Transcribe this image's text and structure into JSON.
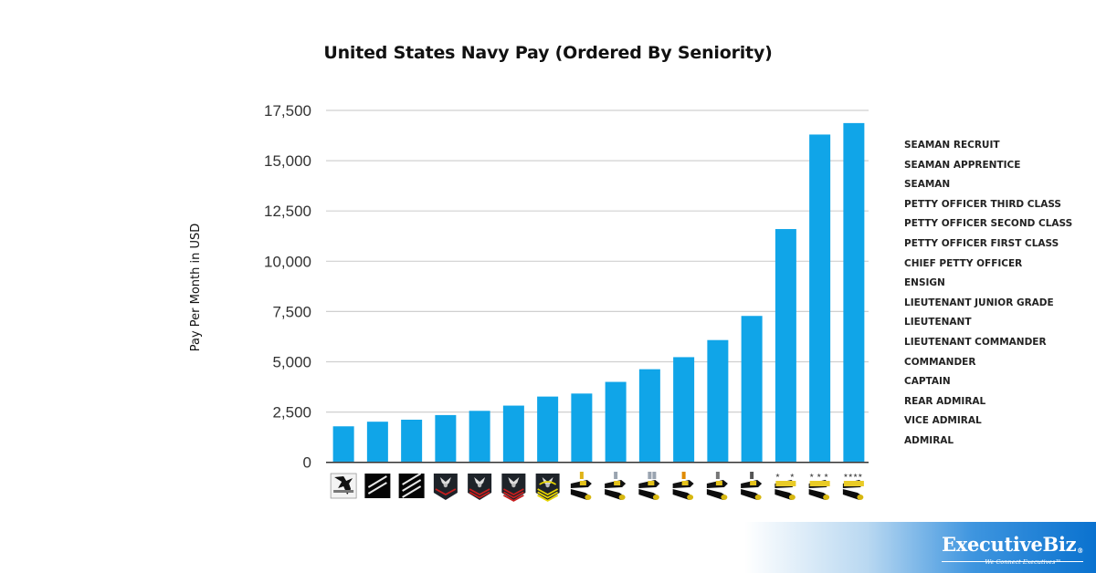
{
  "chart_data": {
    "type": "bar",
    "title": "United States Navy Pay (Ordered By Seniority)",
    "xlabel": "",
    "ylabel": "Pay Per Month in USD",
    "ylim": [
      0,
      17500
    ],
    "yticks": [
      0,
      2500,
      5000,
      7500,
      10000,
      12500,
      15000,
      17500
    ],
    "ytick_labels": [
      "0",
      "2,500",
      "5,000",
      "7,500",
      "10,000",
      "12,500",
      "15,000",
      "17,500"
    ],
    "grid": true,
    "bar_color": "#10A5E8",
    "categories": [
      "SEAMAN RECRUIT",
      "SEAMAN APPRENTICE",
      "SEAMAN",
      "PETTY OFFICER THIRD CLASS",
      "PETTY OFFICER SECOND CLASS",
      "PETTY OFFICER FIRST CLASS",
      "CHIEF PETTY OFFICER",
      "ENSIGN",
      "LIEUTENANT JUNIOR GRADE",
      "LIEUTENANT",
      "LIEUTENANT COMMANDER",
      "COMMANDER",
      "CAPTAIN",
      "REAR ADMIRAL",
      "VICE ADMIRAL",
      "ADMIRAL"
    ],
    "values": [
      1790,
      2020,
      2120,
      2350,
      2560,
      2820,
      3270,
      3420,
      4000,
      4630,
      5230,
      6080,
      7280,
      11600,
      16300,
      16870
    ],
    "x_icons": [
      "seaman-recruit-eagle-icon",
      "two-stripe-sleeve-icon",
      "three-stripe-sleeve-icon",
      "petty-officer-one-chevron-icon",
      "petty-officer-two-chevrons-icon",
      "petty-officer-three-chevrons-icon",
      "chief-petty-officer-rocker-icon",
      "gold-bar-shoulder-icon",
      "silver-bar-shoulder-icon",
      "double-silver-bar-shoulder-icon",
      "gold-oak-leaf-shoulder-icon",
      "silver-oak-leaf-shoulder-icon",
      "eagle-shoulder-icon",
      "two-star-shoulder-icon",
      "three-star-shoulder-icon",
      "four-star-shoulder-icon"
    ],
    "legend_position": "right"
  },
  "brand": {
    "name": "ExecutiveBiz",
    "mark": "®",
    "tagline": "We Connect Executives™"
  }
}
